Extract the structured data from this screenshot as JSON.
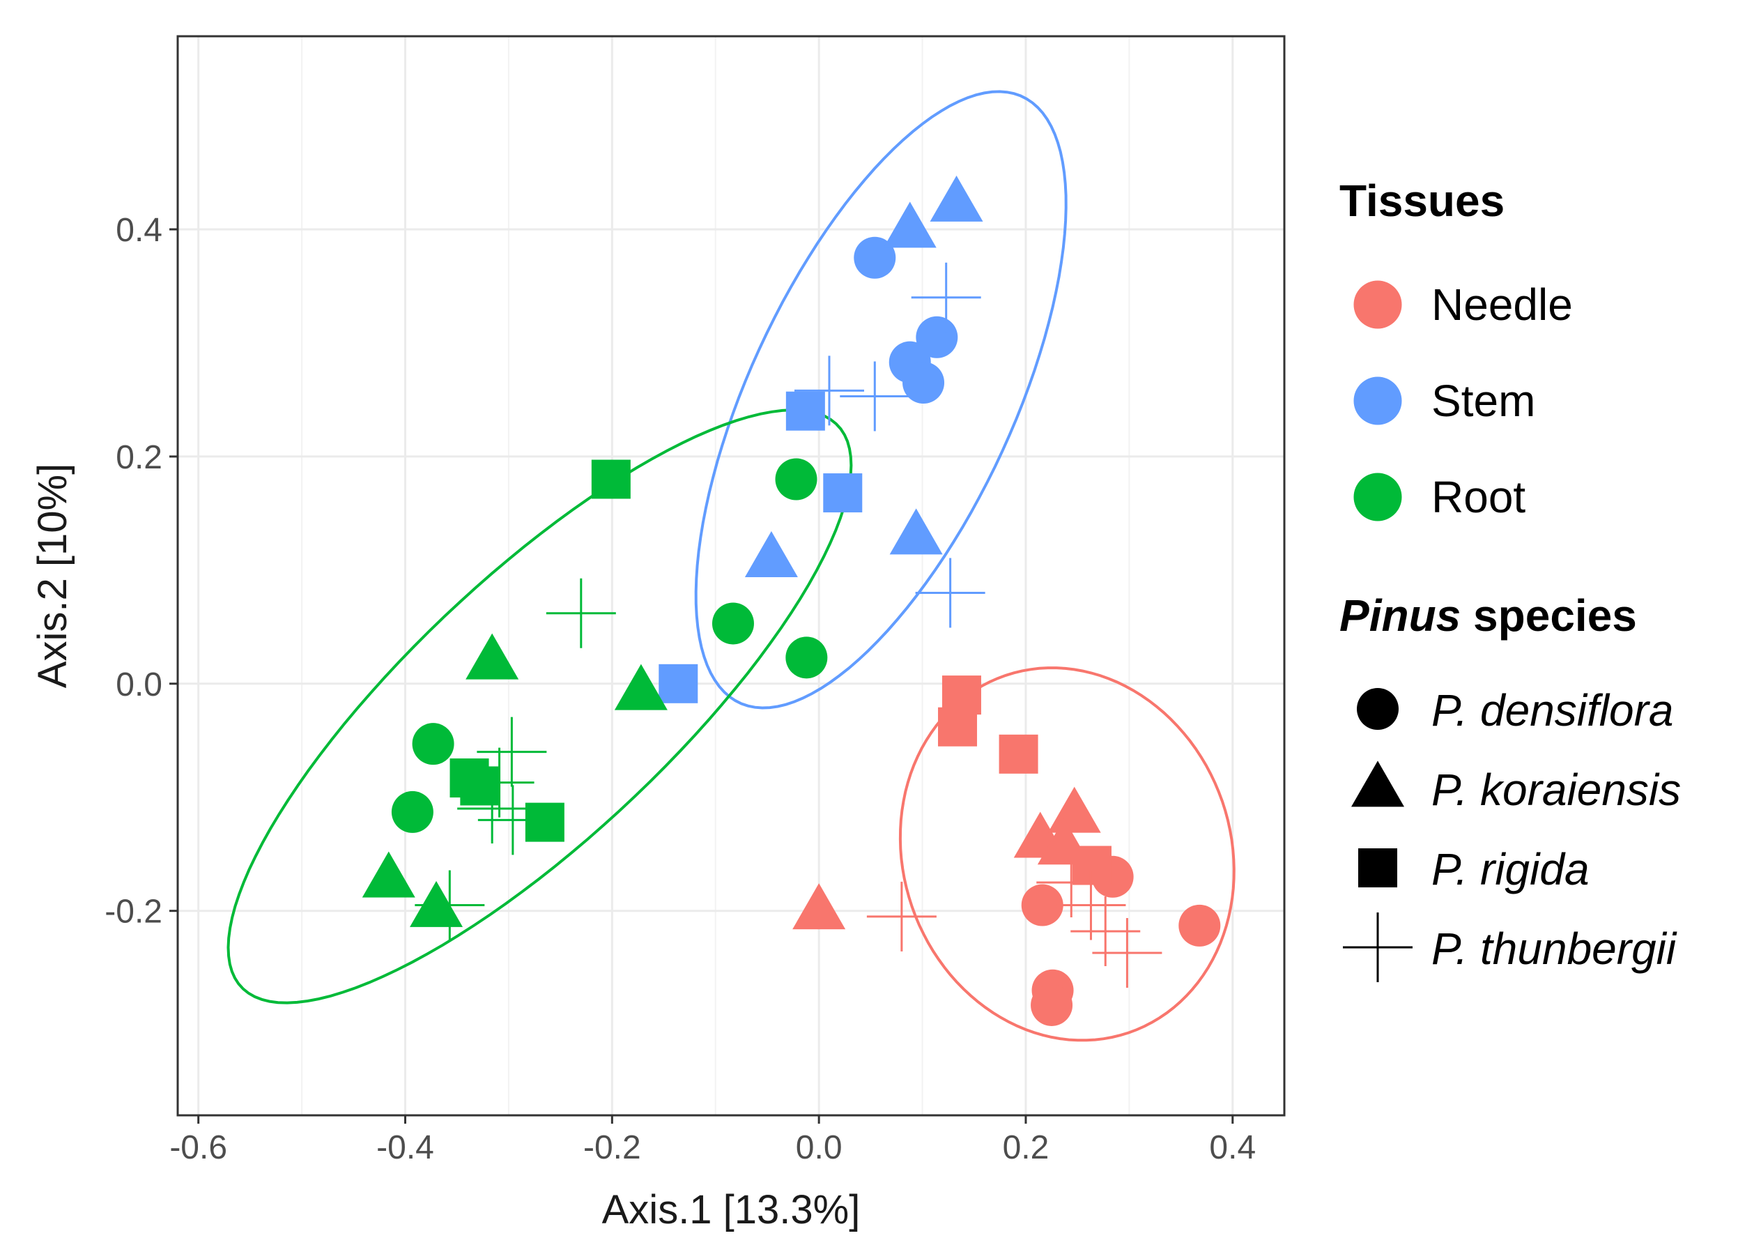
{
  "chart_data": {
    "type": "scatter",
    "xlabel": "Axis.1   [13.3%]",
    "ylabel": "Axis.2   [10%]",
    "xlim": [
      -0.62,
      0.45
    ],
    "ylim": [
      -0.38,
      0.57
    ],
    "x_ticks": [
      -0.6,
      -0.4,
      -0.2,
      0.0,
      0.2,
      0.4
    ],
    "x_tick_labels": [
      "-0.6",
      "-0.4",
      "-0.2",
      "0.0",
      "0.2",
      "0.4"
    ],
    "y_ticks": [
      -0.2,
      0.0,
      0.2,
      0.4
    ],
    "y_tick_labels": [
      "-0.2",
      "0.0",
      "0.2",
      "0.4"
    ],
    "grid": true,
    "legend_position": "right",
    "tissue_legend": {
      "title": "Tissues",
      "items": [
        {
          "key": "Needle",
          "label": "Needle",
          "color": "#F8766D"
        },
        {
          "key": "Stem",
          "label": "Stem",
          "color": "#619CFF"
        },
        {
          "key": "Root",
          "label": "Root",
          "color": "#00BA38"
        }
      ]
    },
    "species_legend": {
      "title_italic": "Pinus",
      "title_rest": " species",
      "items": [
        {
          "key": "densiflora",
          "label": "P. densiflora",
          "shape": "circle"
        },
        {
          "key": "koraiensis",
          "label": "P. koraiensis",
          "shape": "triangle"
        },
        {
          "key": "rigida",
          "label": "P. rigida",
          "shape": "square"
        },
        {
          "key": "thunbergii",
          "label": "P. thunbergii",
          "shape": "cross"
        }
      ]
    },
    "ellipses": [
      {
        "tissue": "Stem",
        "cx": 0.06,
        "cy": 0.25,
        "a": 0.3,
        "b": 0.125,
        "angle_deg": 62
      },
      {
        "tissue": "Root",
        "cx": -0.27,
        "cy": -0.02,
        "a": 0.38,
        "b": 0.12,
        "angle_deg": 40
      },
      {
        "tissue": "Needle",
        "cx": 0.24,
        "cy": -0.15,
        "a": 0.17,
        "b": 0.155,
        "angle_deg": 130
      }
    ],
    "points": [
      {
        "x": 0.054,
        "y": 0.375,
        "tissue": "Stem",
        "species": "densiflora"
      },
      {
        "x": 0.114,
        "y": 0.305,
        "tissue": "Stem",
        "species": "densiflora"
      },
      {
        "x": 0.088,
        "y": 0.283,
        "tissue": "Stem",
        "species": "densiflora"
      },
      {
        "x": 0.101,
        "y": 0.265,
        "tissue": "Stem",
        "species": "densiflora"
      },
      {
        "x": 0.088,
        "y": 0.4,
        "tissue": "Stem",
        "species": "koraiensis"
      },
      {
        "x": 0.133,
        "y": 0.423,
        "tissue": "Stem",
        "species": "koraiensis"
      },
      {
        "x": 0.094,
        "y": 0.13,
        "tissue": "Stem",
        "species": "koraiensis"
      },
      {
        "x": -0.046,
        "y": 0.11,
        "tissue": "Stem",
        "species": "koraiensis"
      },
      {
        "x": -0.013,
        "y": 0.24,
        "tissue": "Stem",
        "species": "rigida"
      },
      {
        "x": 0.023,
        "y": 0.168,
        "tissue": "Stem",
        "species": "rigida"
      },
      {
        "x": -0.136,
        "y": 0.0,
        "tissue": "Stem",
        "species": "rigida"
      },
      {
        "x": 0.123,
        "y": 0.34,
        "tissue": "Stem",
        "species": "thunbergii"
      },
      {
        "x": 0.01,
        "y": 0.258,
        "tissue": "Stem",
        "species": "thunbergii"
      },
      {
        "x": 0.054,
        "y": 0.253,
        "tissue": "Stem",
        "species": "thunbergii"
      },
      {
        "x": 0.127,
        "y": 0.08,
        "tissue": "Stem",
        "species": "thunbergii"
      },
      {
        "x": -0.022,
        "y": 0.18,
        "tissue": "Root",
        "species": "densiflora"
      },
      {
        "x": -0.083,
        "y": 0.053,
        "tissue": "Root",
        "species": "densiflora"
      },
      {
        "x": -0.012,
        "y": 0.023,
        "tissue": "Root",
        "species": "densiflora"
      },
      {
        "x": -0.373,
        "y": -0.053,
        "tissue": "Root",
        "species": "densiflora"
      },
      {
        "x": -0.393,
        "y": -0.113,
        "tissue": "Root",
        "species": "densiflora"
      },
      {
        "x": -0.316,
        "y": 0.02,
        "tissue": "Root",
        "species": "koraiensis"
      },
      {
        "x": -0.172,
        "y": -0.007,
        "tissue": "Root",
        "species": "koraiensis"
      },
      {
        "x": -0.416,
        "y": -0.172,
        "tissue": "Root",
        "species": "koraiensis"
      },
      {
        "x": -0.37,
        "y": -0.198,
        "tissue": "Root",
        "species": "koraiensis"
      },
      {
        "x": -0.201,
        "y": 0.18,
        "tissue": "Root",
        "species": "rigida"
      },
      {
        "x": -0.338,
        "y": -0.083,
        "tissue": "Root",
        "species": "rigida"
      },
      {
        "x": -0.328,
        "y": -0.09,
        "tissue": "Root",
        "species": "rigida"
      },
      {
        "x": -0.265,
        "y": -0.122,
        "tissue": "Root",
        "species": "rigida"
      },
      {
        "x": -0.23,
        "y": 0.062,
        "tissue": "Root",
        "species": "thunbergii"
      },
      {
        "x": -0.297,
        "y": -0.06,
        "tissue": "Root",
        "species": "thunbergii"
      },
      {
        "x": -0.309,
        "y": -0.087,
        "tissue": "Root",
        "species": "thunbergii"
      },
      {
        "x": -0.316,
        "y": -0.11,
        "tissue": "Root",
        "species": "thunbergii"
      },
      {
        "x": -0.296,
        "y": -0.12,
        "tissue": "Root",
        "species": "thunbergii"
      },
      {
        "x": -0.357,
        "y": -0.195,
        "tissue": "Root",
        "species": "thunbergii"
      },
      {
        "x": 0.216,
        "y": -0.195,
        "tissue": "Needle",
        "species": "densiflora"
      },
      {
        "x": 0.284,
        "y": -0.17,
        "tissue": "Needle",
        "species": "densiflora"
      },
      {
        "x": 0.368,
        "y": -0.213,
        "tissue": "Needle",
        "species": "densiflora"
      },
      {
        "x": 0.226,
        "y": -0.27,
        "tissue": "Needle",
        "species": "densiflora"
      },
      {
        "x": 0.225,
        "y": -0.283,
        "tissue": "Needle",
        "species": "densiflora"
      },
      {
        "x": 0.0,
        "y": -0.2,
        "tissue": "Needle",
        "species": "koraiensis"
      },
      {
        "x": 0.214,
        "y": -0.137,
        "tissue": "Needle",
        "species": "koraiensis"
      },
      {
        "x": 0.247,
        "y": -0.115,
        "tissue": "Needle",
        "species": "koraiensis"
      },
      {
        "x": 0.237,
        "y": -0.143,
        "tissue": "Needle",
        "species": "koraiensis"
      },
      {
        "x": 0.138,
        "y": -0.01,
        "tissue": "Needle",
        "species": "rigida"
      },
      {
        "x": 0.134,
        "y": -0.038,
        "tissue": "Needle",
        "species": "rigida"
      },
      {
        "x": 0.193,
        "y": -0.062,
        "tissue": "Needle",
        "species": "rigida"
      },
      {
        "x": 0.264,
        "y": -0.16,
        "tissue": "Needle",
        "species": "rigida"
      },
      {
        "x": 0.08,
        "y": -0.205,
        "tissue": "Needle",
        "species": "thunbergii"
      },
      {
        "x": 0.244,
        "y": -0.175,
        "tissue": "Needle",
        "species": "thunbergii"
      },
      {
        "x": 0.263,
        "y": -0.195,
        "tissue": "Needle",
        "species": "thunbergii"
      },
      {
        "x": 0.277,
        "y": -0.218,
        "tissue": "Needle",
        "species": "thunbergii"
      },
      {
        "x": 0.298,
        "y": -0.237,
        "tissue": "Needle",
        "species": "thunbergii"
      }
    ]
  }
}
